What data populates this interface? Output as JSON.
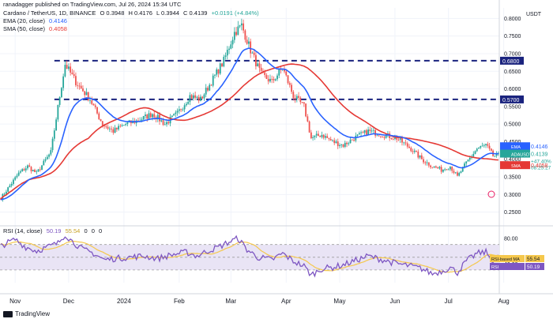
{
  "publisher_line": "ranadagger published on TradingView.com, Jul 26, 2024 15:34 UTC",
  "currency": "USDT",
  "header": {
    "symbol": "Cardano / TetherUS, 1D, BINANCE",
    "ohlc": [
      "O 0.3948",
      "H 0.4176",
      "L 0.3944",
      "C 0.4139",
      "+0.0191 (+4.84%)"
    ],
    "ema_label": "EMA (20, close)",
    "ema_value": "0.4146",
    "sma_label": "SMA (50, close)",
    "sma_value": "0.4058"
  },
  "rsi_header": {
    "label": "RSI (14, close)",
    "value1": "50.19",
    "value2": "55.54",
    "extra": [
      "0",
      "0",
      "0"
    ]
  },
  "footer_brand": "TradingView",
  "colors": {
    "up": "#26a69a",
    "down": "#ef5350",
    "ema": "#2962ff",
    "sma": "#e53935",
    "rsi": "#7e57c2",
    "rsi_ma": "#f5c84c",
    "band": "#e9e4f5",
    "level": "#1a237e"
  },
  "chart_data": {
    "type": "candlestick",
    "x_labels": [
      "Nov",
      "Dec",
      "2024",
      "Feb",
      "Mar",
      "Apr",
      "May",
      "Jun",
      "Jul",
      "Aug"
    ],
    "x_label_day_offsets": [
      8,
      38,
      69,
      100,
      129,
      160,
      190,
      221,
      251,
      282
    ],
    "y_ticks": [
      0.25,
      0.3,
      0.35,
      0.4,
      0.45,
      0.5,
      0.55,
      0.6,
      0.65,
      0.7,
      0.75,
      0.8
    ],
    "y_tick_labels": [
      "0.2500",
      "0.3000",
      "0.3500",
      "0.4000",
      "0.4500",
      "0.5000",
      "0.5500",
      "0.6000",
      "0.6500",
      "0.7000",
      "0.7500",
      "0.8000"
    ],
    "ylim": [
      0.22,
      0.83
    ],
    "horizontal_levels": [
      {
        "value": 0.68,
        "label": "0.6800"
      },
      {
        "value": 0.57,
        "label": "0.5700"
      }
    ],
    "price_tags": [
      {
        "label": "EMA",
        "value": "0.4146",
        "price": 0.4146,
        "color": "#2962ff"
      },
      {
        "label": "ADAUSDT",
        "value": "0.4139",
        "sub": [
          "+47.40%",
          "08:25:27"
        ],
        "price": 0.4139,
        "color": "#26a69a"
      },
      {
        "label": "SMA",
        "value": "0.4058",
        "price": 0.4058,
        "color": "#e53935"
      }
    ],
    "anchors": [
      [
        0,
        0.29
      ],
      [
        10,
        0.36
      ],
      [
        15,
        0.38
      ],
      [
        20,
        0.36
      ],
      [
        28,
        0.42
      ],
      [
        33,
        0.58
      ],
      [
        36,
        0.67
      ],
      [
        42,
        0.62
      ],
      [
        50,
        0.57
      ],
      [
        57,
        0.5
      ],
      [
        63,
        0.48
      ],
      [
        70,
        0.5
      ],
      [
        77,
        0.51
      ],
      [
        85,
        0.53
      ],
      [
        92,
        0.5
      ],
      [
        99,
        0.53
      ],
      [
        106,
        0.58
      ],
      [
        112,
        0.57
      ],
      [
        118,
        0.62
      ],
      [
        125,
        0.68
      ],
      [
        131,
        0.76
      ],
      [
        135,
        0.78
      ],
      [
        140,
        0.71
      ],
      [
        146,
        0.64
      ],
      [
        152,
        0.62
      ],
      [
        158,
        0.66
      ],
      [
        164,
        0.58
      ],
      [
        170,
        0.55
      ],
      [
        174,
        0.46
      ],
      [
        180,
        0.47
      ],
      [
        186,
        0.45
      ],
      [
        192,
        0.44
      ],
      [
        198,
        0.46
      ],
      [
        206,
        0.48
      ],
      [
        214,
        0.47
      ],
      [
        222,
        0.46
      ],
      [
        230,
        0.43
      ],
      [
        236,
        0.4
      ],
      [
        242,
        0.38
      ],
      [
        247,
        0.37
      ],
      [
        252,
        0.38
      ],
      [
        256,
        0.35
      ],
      [
        261,
        0.39
      ],
      [
        267,
        0.43
      ],
      [
        272,
        0.44
      ],
      [
        276,
        0.41
      ],
      [
        279,
        0.41
      ]
    ],
    "rsi": {
      "ylim": [
        10,
        92
      ],
      "levels": [
        70,
        50,
        30
      ],
      "tick_labels": [
        {
          "value": 80,
          "label": "80.00"
        },
        {
          "value": 40,
          "label": "40.00"
        }
      ],
      "anchors": [
        [
          0,
          68
        ],
        [
          8,
          78
        ],
        [
          14,
          66
        ],
        [
          20,
          60
        ],
        [
          26,
          66
        ],
        [
          32,
          72
        ],
        [
          36,
          86
        ],
        [
          40,
          75
        ],
        [
          46,
          62
        ],
        [
          52,
          56
        ],
        [
          58,
          46
        ],
        [
          64,
          48
        ],
        [
          72,
          50
        ],
        [
          80,
          52
        ],
        [
          88,
          48
        ],
        [
          96,
          54
        ],
        [
          104,
          58
        ],
        [
          110,
          52
        ],
        [
          116,
          60
        ],
        [
          122,
          66
        ],
        [
          128,
          74
        ],
        [
          133,
          80
        ],
        [
          138,
          62
        ],
        [
          144,
          50
        ],
        [
          152,
          46
        ],
        [
          158,
          56
        ],
        [
          164,
          44
        ],
        [
          170,
          36
        ],
        [
          174,
          22
        ],
        [
          180,
          32
        ],
        [
          186,
          34
        ],
        [
          192,
          38
        ],
        [
          198,
          44
        ],
        [
          206,
          52
        ],
        [
          214,
          46
        ],
        [
          222,
          40
        ],
        [
          230,
          36
        ],
        [
          236,
          32
        ],
        [
          242,
          24
        ],
        [
          247,
          28
        ],
        [
          252,
          34
        ],
        [
          256,
          26
        ],
        [
          261,
          44
        ],
        [
          267,
          56
        ],
        [
          272,
          58
        ],
        [
          276,
          44
        ],
        [
          279,
          50
        ]
      ],
      "tags": [
        {
          "label": "RSI-based MA",
          "value": "55.54",
          "color": "#f5c84c"
        },
        {
          "label": "RSI",
          "value": "50.19",
          "color": "#7e57c2"
        }
      ]
    }
  }
}
